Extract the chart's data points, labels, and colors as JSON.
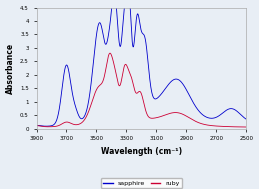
{
  "title": "",
  "xlabel": "Wavelength (cm⁻¹)",
  "ylabel": "Absorbance",
  "xlim": [
    3900,
    2500
  ],
  "ylim": [
    0,
    4.5
  ],
  "yticks": [
    0,
    0.5,
    1,
    1.5,
    2,
    2.5,
    3,
    3.5,
    4,
    4.5
  ],
  "xticks": [
    3900,
    3700,
    3500,
    3300,
    3100,
    2900,
    2700,
    2500
  ],
  "sapphire_color": "#0000cc",
  "ruby_color": "#cc0033",
  "background_color": "#e8eef5",
  "legend_labels": [
    "sapphire",
    "ruby"
  ]
}
